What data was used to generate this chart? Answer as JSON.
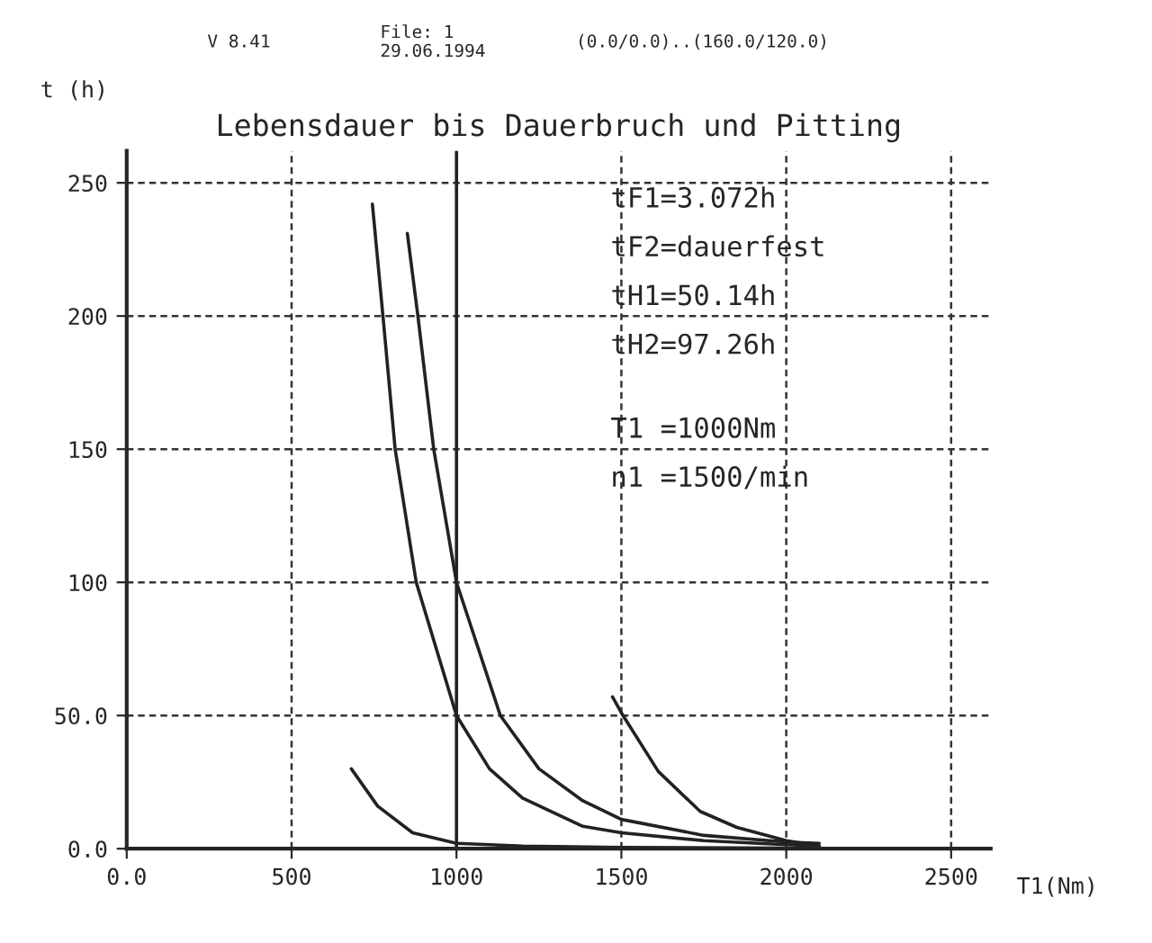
{
  "chart_data": {
    "type": "line",
    "title": "Lebensdauer bis Dauerbruch und Pitting",
    "xlabel": "T1(Nm)",
    "ylabel": "t (h)",
    "series": [
      {
        "color": "#222222",
        "x": [
          745,
          777,
          814,
          878,
          1000,
          1100,
          1200,
          1383,
          1500,
          1750,
          2000,
          2100
        ],
        "values": [
          242,
          200,
          150,
          100,
          50,
          30,
          19,
          8.4,
          6,
          3,
          1.5,
          1
        ]
      },
      {
        "color": "#222222",
        "x": [
          851,
          883,
          931,
          1000,
          1133,
          1250,
          1383,
          1500,
          1750,
          2000,
          2100
        ],
        "values": [
          231,
          200,
          150,
          100,
          50,
          30,
          18,
          11,
          5,
          2.5,
          2
        ]
      },
      {
        "color": "#222222",
        "x": [
          1473,
          1500,
          1612,
          1739,
          1850,
          2000,
          2100
        ],
        "values": [
          57,
          51,
          29,
          14,
          8,
          3,
          1
        ]
      },
      {
        "color": "#222222",
        "x": [
          681,
          761,
          867,
          1000,
          1200,
          1500,
          2000
        ],
        "values": [
          30,
          16,
          6,
          2,
          1,
          0.5,
          0.2
        ]
      }
    ],
    "xlim": [
      0,
      2620
    ],
    "ylim": [
      0,
      262
    ],
    "xticks": [
      {
        "value": 0,
        "label": "0.0"
      },
      500,
      1000,
      1500,
      2000,
      2500
    ],
    "yticks": [
      {
        "value": 0,
        "label": "0.0"
      },
      {
        "value": 50,
        "label": "50.0"
      },
      100,
      150,
      200,
      250
    ],
    "grid": true,
    "line_style": "solid",
    "marker": "none",
    "ref_lines": [
      {
        "axis": "x",
        "value": 1000,
        "line_style": "solid",
        "color": "#222222"
      }
    ],
    "annotations": [
      "tF1=3.072h",
      "tF2=dauerfest",
      "tH1=50.14h",
      "tH2=97.26h",
      "T1 =1000Nm",
      "n1 =1500/min",
      "V 8.41",
      "File: 1",
      "29.06.1994",
      "(0.0/0.0)..(160.0/120.0)"
    ]
  }
}
